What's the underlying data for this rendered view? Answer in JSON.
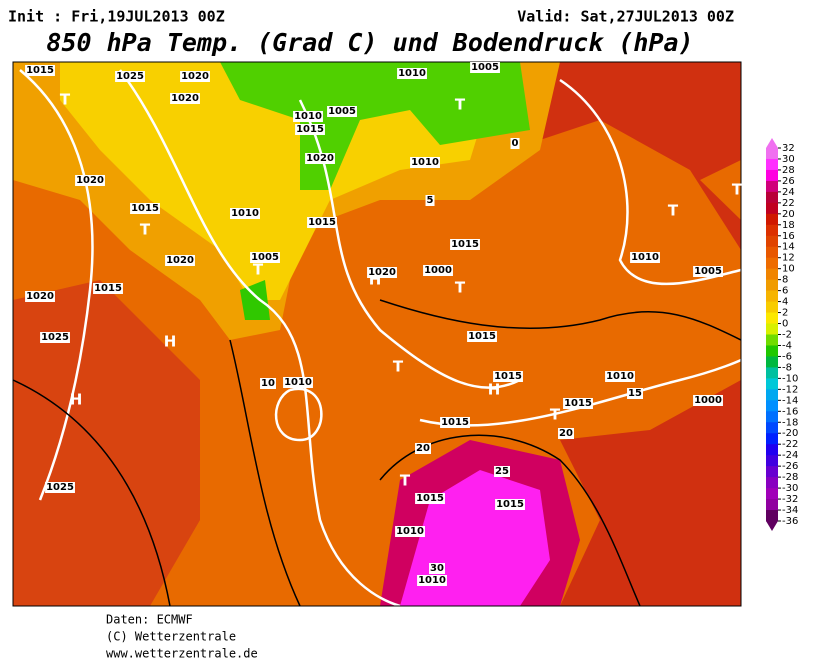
{
  "header": {
    "init": "Init : Fri,19JUL2013 00Z",
    "valid": "Valid: Sat,27JUL2013 00Z",
    "title": "850 hPa Temp. (Grad C) und Bodendruck (hPa)"
  },
  "colorbar": {
    "ticks": [
      32,
      30,
      28,
      26,
      24,
      22,
      20,
      18,
      16,
      14,
      12,
      10,
      8,
      6,
      4,
      2,
      0,
      -2,
      -4,
      -6,
      -8,
      -10,
      -12,
      -14,
      -16,
      -18,
      -20,
      -22,
      -24,
      -26,
      -28,
      -30,
      -32,
      -34,
      -36
    ],
    "colors": [
      "#f070f0",
      "#ff30ff",
      "#ff00e0",
      "#d0007a",
      "#b80038",
      "#c00020",
      "#d01800",
      "#dc3000",
      "#e04400",
      "#e85800",
      "#ee6c00",
      "#f08400",
      "#f09c00",
      "#f6b400",
      "#f8cc00",
      "#fce800",
      "#d8f000",
      "#70dc00",
      "#20c800",
      "#00b840",
      "#00c0a0",
      "#00c8d8",
      "#00a8f0",
      "#0090ff",
      "#0070ff",
      "#0048ff",
      "#0020ff",
      "#2000f0",
      "#4000e0",
      "#6800d0",
      "#8800c0",
      "#a000b8",
      "#9000a0",
      "#600060"
    ]
  },
  "map": {
    "labels": [
      "1015",
      "1025",
      "1020",
      "1020",
      "T",
      "1010",
      "1015",
      "1020",
      "1005",
      "1010",
      "T",
      "1005",
      "1015",
      "1010",
      "1000",
      "1020",
      "1015",
      "T",
      "1010",
      "1015",
      "1020",
      "1005",
      "T",
      "1020",
      "H",
      "1025",
      "H",
      "H",
      "T",
      "1015",
      "1010",
      "1010",
      "T",
      "1015",
      "1015",
      "H",
      "1015",
      "T",
      "1025",
      "1015",
      "1015",
      "1010",
      "T",
      "1010",
      "1000",
      "1005",
      "T",
      "T",
      "1015",
      "1010",
      "1020",
      "1010",
      "20",
      "25",
      "30",
      "20",
      "15",
      "10",
      "5",
      "0"
    ]
  },
  "footer": {
    "source": "Daten: ECMWF",
    "copyright": "(C) Wetterzentrale",
    "url": "www.wetterzentrale.de"
  }
}
